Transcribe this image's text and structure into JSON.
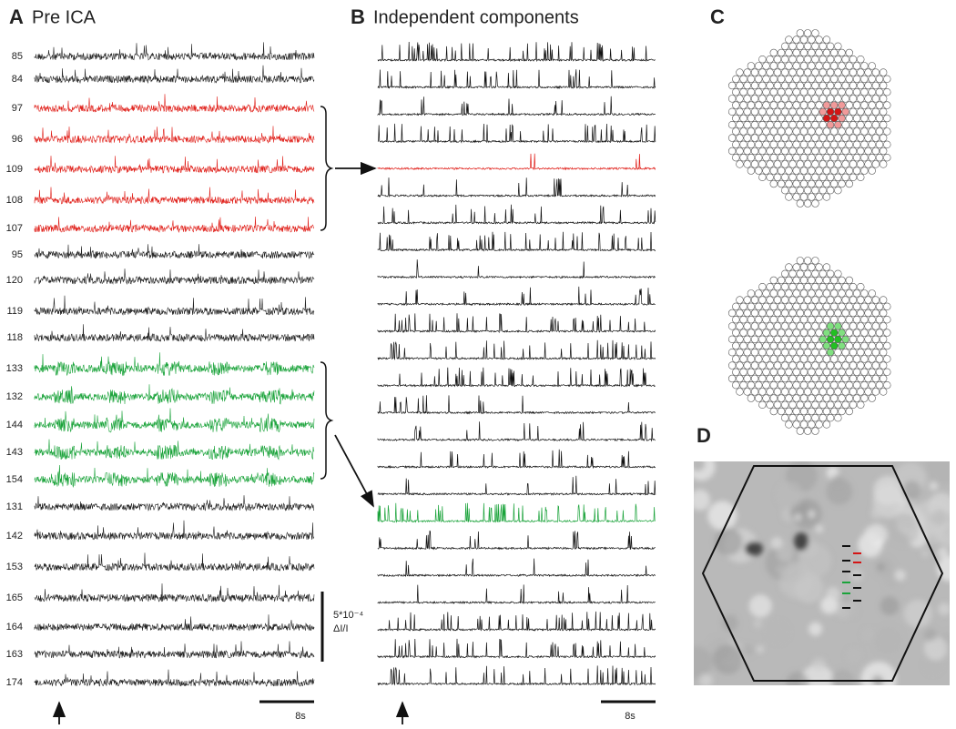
{
  "panels": {
    "A": {
      "letter": "A",
      "title": "Pre ICA",
      "channel_labels": [
        "85",
        "84",
        "97",
        "96",
        "109",
        "108",
        "107",
        "95",
        "120",
        "119",
        "118",
        "133",
        "132",
        "144",
        "143",
        "154",
        "131",
        "142",
        "153",
        "165",
        "164",
        "163",
        "174"
      ],
      "scale_time": "8s",
      "scale_amplitude": "5*10⁻⁴",
      "scale_unit": "ΔI/I"
    },
    "B": {
      "letter": "B",
      "title": "Independent components",
      "scale_time": "8s"
    },
    "C": {
      "letter": "C"
    },
    "D": {
      "letter": "D"
    }
  }
}
